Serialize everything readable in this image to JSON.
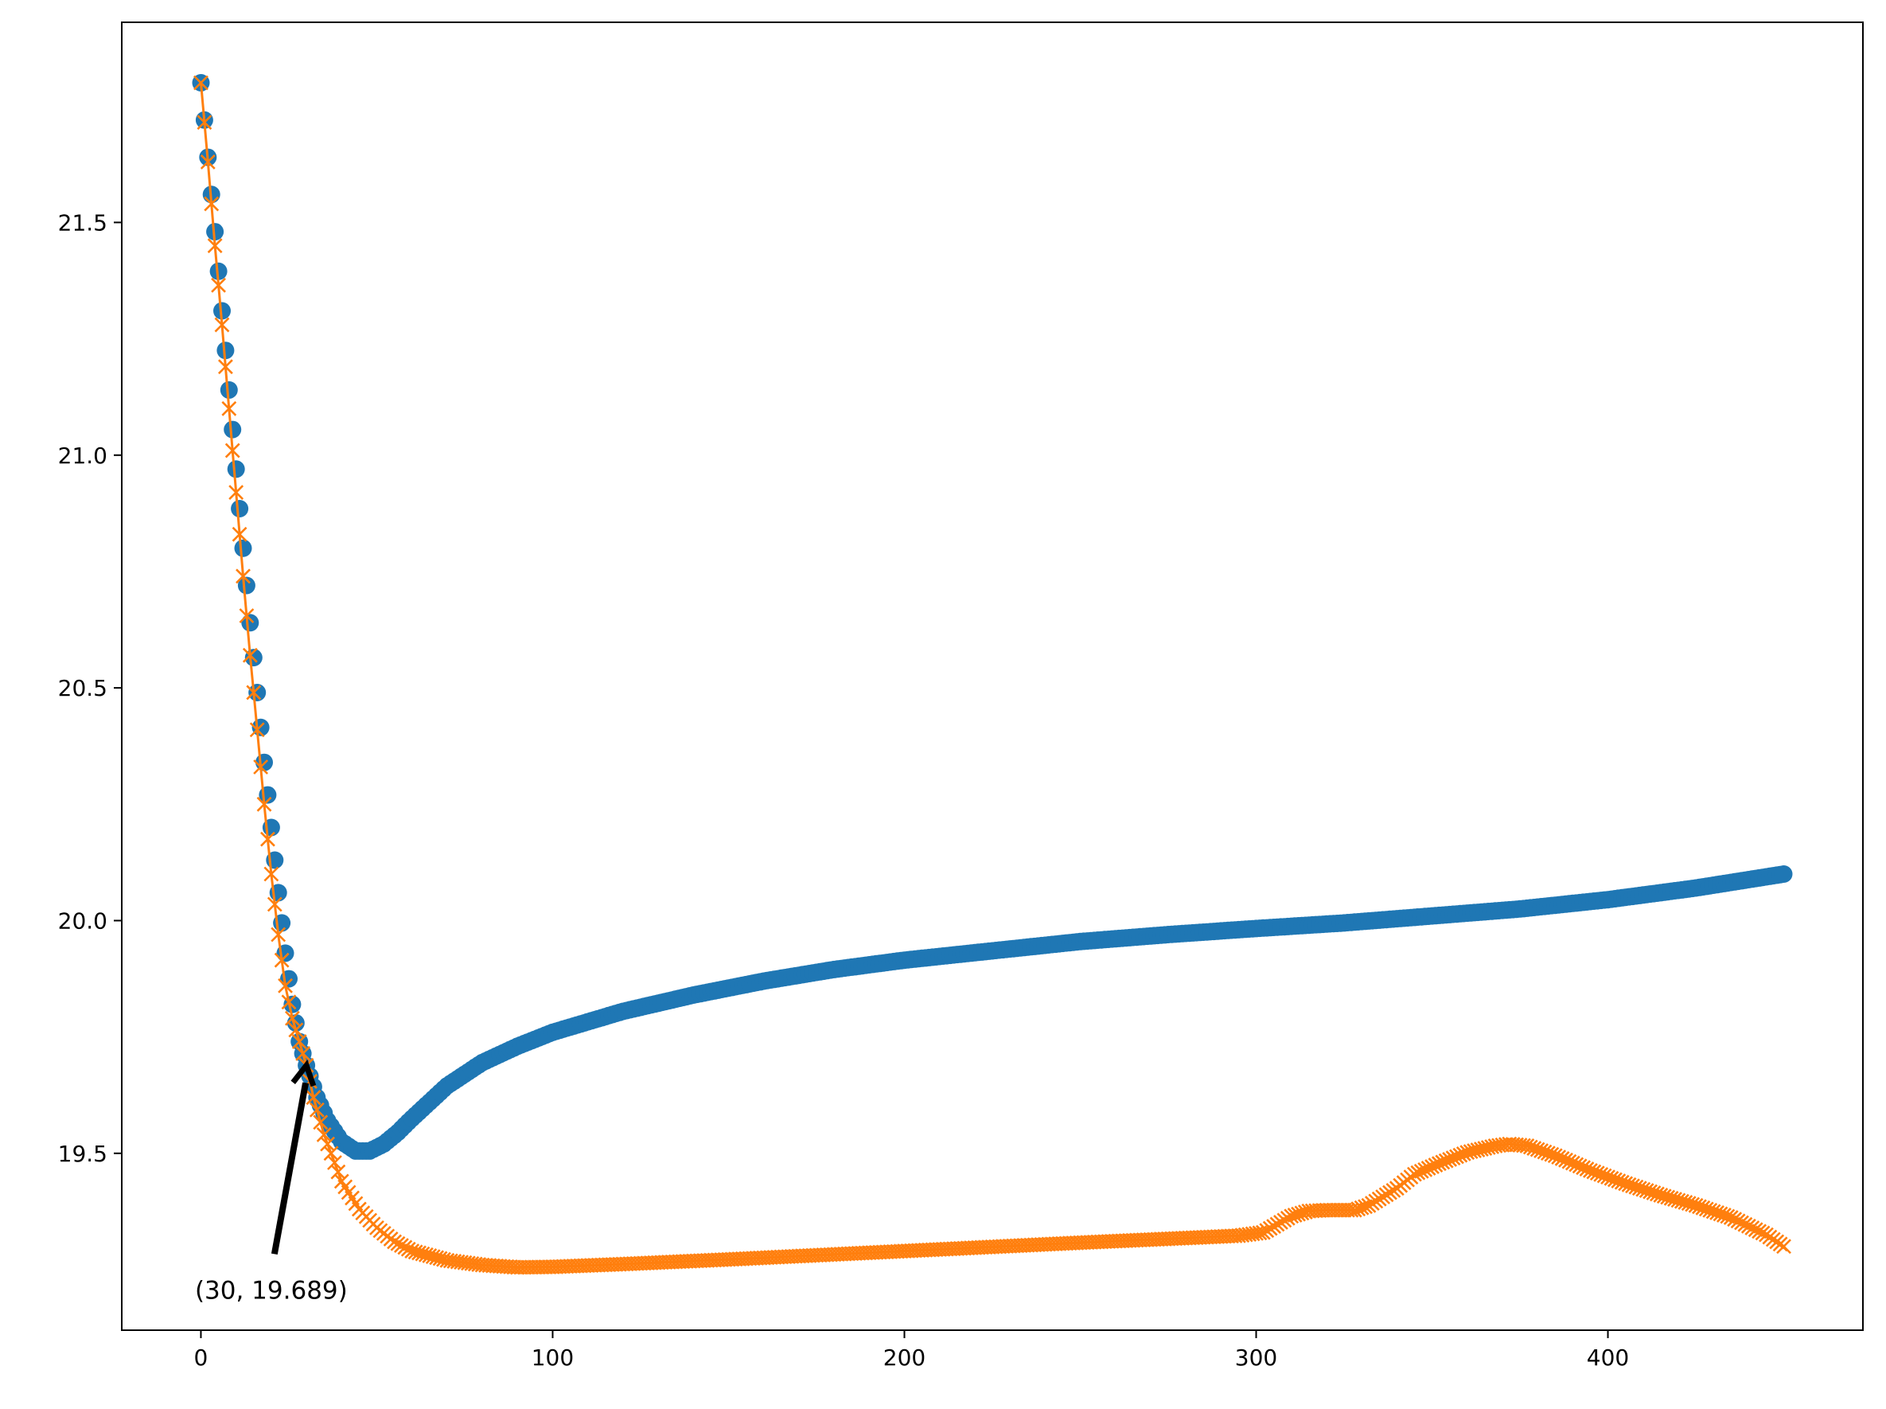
{
  "chart_data": {
    "type": "scatter",
    "title": "",
    "xlabel": "",
    "ylabel": "",
    "xlim": [
      -22.5,
      472.5
    ],
    "ylim": [
      19.12,
      21.93
    ],
    "xticks": [
      0,
      100,
      200,
      300,
      400
    ],
    "yticks": [
      19.5,
      20.0,
      20.5,
      21.0,
      21.5
    ],
    "grid": false,
    "legend": "none",
    "series": [
      {
        "marker": "circle",
        "color": "#1f77b4",
        "line": false,
        "x_range": [
          0,
          450
        ],
        "x_step": 1,
        "keypoints": [
          [
            0,
            21.8
          ],
          [
            2,
            21.64
          ],
          [
            4,
            21.48
          ],
          [
            6,
            21.31
          ],
          [
            8,
            21.14
          ],
          [
            10,
            20.97
          ],
          [
            12,
            20.8
          ],
          [
            14,
            20.64
          ],
          [
            16,
            20.49
          ],
          [
            18,
            20.34
          ],
          [
            20,
            20.2
          ],
          [
            22,
            20.06
          ],
          [
            24,
            19.93
          ],
          [
            26,
            19.82
          ],
          [
            28,
            19.74
          ],
          [
            30,
            19.689
          ],
          [
            33,
            19.62
          ],
          [
            36,
            19.57
          ],
          [
            40,
            19.525
          ],
          [
            44,
            19.505
          ],
          [
            48,
            19.505
          ],
          [
            52,
            19.52
          ],
          [
            56,
            19.545
          ],
          [
            60,
            19.575
          ],
          [
            70,
            19.645
          ],
          [
            80,
            19.695
          ],
          [
            90,
            19.73
          ],
          [
            100,
            19.76
          ],
          [
            120,
            19.805
          ],
          [
            140,
            19.84
          ],
          [
            160,
            19.87
          ],
          [
            180,
            19.895
          ],
          [
            200,
            19.915
          ],
          [
            225,
            19.935
          ],
          [
            250,
            19.955
          ],
          [
            275,
            19.97
          ],
          [
            300,
            19.983
          ],
          [
            325,
            19.995
          ],
          [
            350,
            20.01
          ],
          [
            375,
            20.025
          ],
          [
            400,
            20.045
          ],
          [
            425,
            20.07
          ],
          [
            450,
            20.1
          ]
        ]
      },
      {
        "marker": "x",
        "color": "#ff7f0e",
        "line": true,
        "x_range": [
          0,
          450
        ],
        "x_step": 1,
        "keypoints": [
          [
            0,
            21.8
          ],
          [
            2,
            21.63
          ],
          [
            4,
            21.45
          ],
          [
            6,
            21.28
          ],
          [
            8,
            21.1
          ],
          [
            10,
            20.92
          ],
          [
            12,
            20.74
          ],
          [
            14,
            20.57
          ],
          [
            16,
            20.41
          ],
          [
            18,
            20.25
          ],
          [
            20,
            20.1
          ],
          [
            22,
            19.97
          ],
          [
            24,
            19.86
          ],
          [
            26,
            19.79
          ],
          [
            28,
            19.74
          ],
          [
            30,
            19.689
          ],
          [
            32,
            19.62
          ],
          [
            35,
            19.54
          ],
          [
            40,
            19.44
          ],
          [
            45,
            19.38
          ],
          [
            50,
            19.34
          ],
          [
            55,
            19.31
          ],
          [
            60,
            19.29
          ],
          [
            70,
            19.27
          ],
          [
            80,
            19.26
          ],
          [
            90,
            19.255
          ],
          [
            100,
            19.256
          ],
          [
            120,
            19.262
          ],
          [
            150,
            19.272
          ],
          [
            200,
            19.29
          ],
          [
            250,
            19.308
          ],
          [
            295,
            19.323
          ],
          [
            302,
            19.33
          ],
          [
            310,
            19.365
          ],
          [
            315,
            19.376
          ],
          [
            320,
            19.378
          ],
          [
            328,
            19.378
          ],
          [
            332,
            19.388
          ],
          [
            340,
            19.425
          ],
          [
            345,
            19.455
          ],
          [
            352,
            19.478
          ],
          [
            360,
            19.502
          ],
          [
            368,
            19.516
          ],
          [
            372,
            19.52
          ],
          [
            377,
            19.516
          ],
          [
            385,
            19.495
          ],
          [
            395,
            19.463
          ],
          [
            405,
            19.435
          ],
          [
            415,
            19.41
          ],
          [
            425,
            19.388
          ],
          [
            435,
            19.362
          ],
          [
            445,
            19.325
          ],
          [
            450,
            19.3
          ]
        ]
      }
    ],
    "annotations": [
      {
        "text": "(30, 19.689)",
        "xy": [
          30,
          19.689
        ],
        "text_xy": [
          20,
          19.27
        ],
        "arrow": true
      }
    ]
  }
}
